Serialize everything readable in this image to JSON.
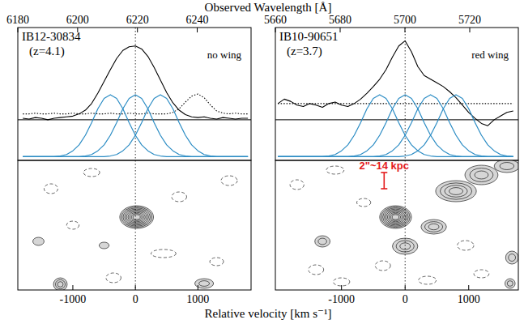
{
  "figure": {
    "xlabel_top": "Observed Wavelength [Å]",
    "xlabel_bottom": "Relative velocity [km s⁻¹]"
  },
  "chart_data": [
    {
      "type": "line",
      "title": "IB12-30834",
      "subtitle": "(z=4.1)",
      "annotation": "no wing",
      "x": [
        -1800,
        -1700,
        -1600,
        -1500,
        -1400,
        -1300,
        -1200,
        -1100,
        -1000,
        -900,
        -800,
        -700,
        -600,
        -500,
        -400,
        -300,
        -200,
        -100,
        0,
        100,
        200,
        300,
        400,
        500,
        600,
        700,
        800,
        900,
        1000,
        1100,
        1200,
        1300,
        1400,
        1500,
        1600,
        1700,
        1800
      ],
      "series": [
        {
          "color": "#000000",
          "line_style": "solid",
          "values": [
            0.02,
            0.01,
            0.03,
            0.02,
            0.0,
            0.02,
            0.03,
            0.04,
            0.05,
            0.08,
            0.13,
            0.22,
            0.36,
            0.52,
            0.68,
            0.83,
            0.94,
            0.99,
            1.0,
            0.96,
            0.86,
            0.71,
            0.54,
            0.37,
            0.23,
            0.13,
            0.07,
            0.04,
            0.03,
            0.04,
            0.02,
            0.01,
            0.03,
            0.02,
            0.01,
            0.02,
            0.02
          ]
        },
        {
          "color": "#000000",
          "line_style": "dotted",
          "values": [
            0.08,
            0.08,
            0.09,
            0.08,
            0.08,
            0.09,
            0.08,
            0.08,
            0.09,
            0.08,
            0.08,
            0.09,
            0.08,
            0.08,
            0.09,
            0.08,
            0.08,
            0.09,
            0.08,
            0.08,
            0.09,
            0.08,
            0.08,
            0.08,
            0.1,
            0.15,
            0.24,
            0.32,
            0.35,
            0.3,
            0.2,
            0.12,
            0.09,
            0.08,
            0.09,
            0.08,
            0.08
          ]
        },
        {
          "color": "#2b8cc4",
          "line_style": "solid",
          "values": [
            -0.5,
            -0.5,
            -0.5,
            -0.5,
            -0.5,
            -0.5,
            -0.49,
            -0.47,
            -0.42,
            -0.34,
            -0.21,
            -0.04,
            0.15,
            0.29,
            0.34,
            0.29,
            0.15,
            -0.04,
            -0.21,
            -0.34,
            -0.42,
            -0.47,
            -0.49,
            -0.5,
            -0.5,
            -0.5,
            -0.5,
            -0.5,
            -0.5,
            -0.5,
            -0.5,
            -0.5,
            -0.5,
            -0.5,
            -0.5,
            -0.5,
            -0.5
          ]
        },
        {
          "color": "#2b8cc4",
          "line_style": "solid",
          "values": [
            -0.5,
            -0.5,
            -0.5,
            -0.5,
            -0.5,
            -0.5,
            -0.5,
            -0.5,
            -0.5,
            -0.5,
            -0.49,
            -0.47,
            -0.42,
            -0.34,
            -0.21,
            -0.04,
            0.15,
            0.29,
            0.34,
            0.29,
            0.15,
            -0.04,
            -0.21,
            -0.34,
            -0.42,
            -0.47,
            -0.49,
            -0.5,
            -0.5,
            -0.5,
            -0.5,
            -0.5,
            -0.5,
            -0.5,
            -0.5,
            -0.5,
            -0.5
          ]
        },
        {
          "color": "#2b8cc4",
          "line_style": "solid",
          "values": [
            -0.5,
            -0.5,
            -0.5,
            -0.5,
            -0.5,
            -0.5,
            -0.5,
            -0.5,
            -0.5,
            -0.5,
            -0.5,
            -0.5,
            -0.5,
            -0.5,
            -0.49,
            -0.47,
            -0.42,
            -0.34,
            -0.21,
            -0.04,
            0.15,
            0.29,
            0.34,
            0.29,
            0.15,
            -0.04,
            -0.21,
            -0.34,
            -0.42,
            -0.47,
            -0.49,
            -0.5,
            -0.5,
            -0.5,
            -0.5,
            -0.5,
            -0.5
          ]
        }
      ],
      "xlim": [
        -1880,
        1850
      ],
      "x2lim": [
        6180,
        6258
      ],
      "x2ticks": [
        6180,
        6200,
        6220,
        6240
      ],
      "ylim": [
        -0.55,
        1.25
      ],
      "yticks": [
        0
      ],
      "vline": 0,
      "grid": false,
      "tick_labels": "x"
    },
    {
      "type": "contour",
      "xlim": [
        -1880,
        1850
      ],
      "xticks": [
        -1000,
        0,
        1000
      ],
      "ylim": [
        -9,
        7
      ],
      "vline": 0,
      "grid": false,
      "tick_labels": "x",
      "blobs": [
        {
          "x": 20,
          "y": 0,
          "rx": 270,
          "ry": 1.4,
          "levels": 9,
          "line_style": "solid"
        },
        {
          "x": -1200,
          "y": -8.3,
          "rx": 110,
          "ry": 0.8,
          "levels": 3,
          "line_style": "solid"
        },
        {
          "x": 1100,
          "y": -8.2,
          "rx": 150,
          "ry": 0.6,
          "levels": 2,
          "line_style": "solid"
        },
        {
          "x": -1550,
          "y": -3,
          "rx": 90,
          "ry": 0.5,
          "levels": 1,
          "line_style": "solid"
        },
        {
          "x": -500,
          "y": -3.5,
          "rx": 80,
          "ry": 0.4,
          "levels": 1,
          "line_style": "solid"
        },
        {
          "x": -1350,
          "y": 3.5,
          "rx": 110,
          "ry": 0.6,
          "levels": 1,
          "line_style": "dashed"
        },
        {
          "x": -700,
          "y": 5.5,
          "rx": 130,
          "ry": 0.5,
          "levels": 1,
          "line_style": "dashed"
        },
        {
          "x": -350,
          "y": -7.5,
          "rx": 120,
          "ry": 0.6,
          "levels": 1,
          "line_style": "dashed"
        },
        {
          "x": 450,
          "y": -4.5,
          "rx": 200,
          "ry": 0.5,
          "levels": 1,
          "line_style": "dashed"
        },
        {
          "x": 700,
          "y": 2.5,
          "rx": 120,
          "ry": 0.6,
          "levels": 1,
          "line_style": "dashed"
        },
        {
          "x": 1500,
          "y": 4.5,
          "rx": 130,
          "ry": 0.6,
          "levels": 1,
          "line_style": "dashed"
        },
        {
          "x": 1300,
          "y": -5.5,
          "rx": 110,
          "ry": 0.5,
          "levels": 1,
          "line_style": "dashed"
        },
        {
          "x": -1000,
          "y": -1,
          "rx": 100,
          "ry": 0.5,
          "levels": 1,
          "line_style": "dashed"
        }
      ]
    },
    {
      "type": "line",
      "title": "IB10-90651",
      "subtitle": "(z=3.7)",
      "annotation": "red wing",
      "x": [
        -2000,
        -1900,
        -1800,
        -1700,
        -1600,
        -1500,
        -1400,
        -1300,
        -1200,
        -1100,
        -1000,
        -900,
        -800,
        -700,
        -600,
        -500,
        -400,
        -300,
        -200,
        -100,
        0,
        100,
        200,
        300,
        400,
        500,
        600,
        700,
        800,
        900,
        1000,
        1100,
        1200,
        1300,
        1400,
        1500,
        1600,
        1700
      ],
      "series": [
        {
          "color": "#000000",
          "line_style": "solid",
          "values": [
            0.22,
            0.28,
            0.25,
            0.2,
            0.18,
            0.22,
            0.2,
            0.17,
            0.22,
            0.24,
            0.2,
            0.18,
            0.22,
            0.28,
            0.36,
            0.45,
            0.55,
            0.68,
            0.85,
            1.0,
            1.07,
            0.92,
            0.72,
            0.6,
            0.55,
            0.5,
            0.45,
            0.38,
            0.3,
            0.2,
            0.1,
            0.02,
            -0.05,
            -0.08,
            0.0,
            0.05,
            0.1,
            0.12
          ]
        },
        {
          "color": "#000000",
          "line_style": "dotted",
          "values": [
            0.22,
            0.22,
            0.22,
            0.22,
            0.22,
            0.22,
            0.22,
            0.22,
            0.22,
            0.22,
            0.22,
            0.22,
            0.22,
            0.22,
            0.22,
            0.22,
            0.22,
            0.22,
            0.22,
            0.22,
            0.22,
            0.22,
            0.22,
            0.22,
            0.22,
            0.22,
            0.22,
            0.22,
            0.22,
            0.22,
            0.22,
            0.22,
            0.22,
            0.22,
            0.22,
            0.22,
            0.22,
            0.22
          ]
        },
        {
          "color": "#2b8cc4",
          "line_style": "solid",
          "values": [
            -0.5,
            -0.5,
            -0.5,
            -0.5,
            -0.5,
            -0.5,
            -0.5,
            -0.5,
            -0.49,
            -0.47,
            -0.42,
            -0.34,
            -0.21,
            -0.04,
            0.15,
            0.29,
            0.34,
            0.29,
            0.15,
            -0.04,
            -0.21,
            -0.34,
            -0.42,
            -0.47,
            -0.49,
            -0.5,
            -0.5,
            -0.5,
            -0.5,
            -0.5,
            -0.5,
            -0.5,
            -0.5,
            -0.5,
            -0.5,
            -0.5,
            -0.5,
            -0.5
          ]
        },
        {
          "color": "#2b8cc4",
          "line_style": "solid",
          "values": [
            -0.5,
            -0.5,
            -0.5,
            -0.5,
            -0.5,
            -0.5,
            -0.5,
            -0.5,
            -0.5,
            -0.5,
            -0.5,
            -0.5,
            -0.49,
            -0.47,
            -0.42,
            -0.34,
            -0.21,
            -0.04,
            0.15,
            0.29,
            0.34,
            0.29,
            0.15,
            -0.04,
            -0.21,
            -0.34,
            -0.42,
            -0.47,
            -0.49,
            -0.5,
            -0.5,
            -0.5,
            -0.5,
            -0.5,
            -0.5,
            -0.5,
            -0.5,
            -0.5
          ]
        },
        {
          "color": "#2b8cc4",
          "line_style": "solid",
          "values": [
            -0.5,
            -0.5,
            -0.5,
            -0.5,
            -0.5,
            -0.5,
            -0.5,
            -0.5,
            -0.5,
            -0.5,
            -0.5,
            -0.5,
            -0.5,
            -0.5,
            -0.5,
            -0.5,
            -0.49,
            -0.47,
            -0.42,
            -0.34,
            -0.21,
            -0.04,
            0.15,
            0.29,
            0.34,
            0.29,
            0.15,
            -0.04,
            -0.21,
            -0.34,
            -0.42,
            -0.47,
            -0.49,
            -0.5,
            -0.5,
            -0.5,
            -0.5,
            -0.5
          ]
        },
        {
          "color": "#2b8cc4",
          "line_style": "solid",
          "values": [
            -0.5,
            -0.5,
            -0.5,
            -0.5,
            -0.5,
            -0.5,
            -0.5,
            -0.5,
            -0.5,
            -0.5,
            -0.5,
            -0.5,
            -0.5,
            -0.5,
            -0.5,
            -0.5,
            -0.5,
            -0.5,
            -0.5,
            -0.5,
            -0.49,
            -0.47,
            -0.42,
            -0.34,
            -0.21,
            -0.04,
            0.15,
            0.29,
            0.34,
            0.29,
            0.15,
            -0.04,
            -0.21,
            -0.34,
            -0.42,
            -0.47,
            -0.49,
            -0.5
          ]
        }
      ],
      "xlim": [
        -2040,
        1780
      ],
      "x2lim": [
        5660,
        5735
      ],
      "x2ticks": [
        5660,
        5680,
        5700,
        5720
      ],
      "ylim": [
        -0.55,
        1.25
      ],
      "yticks": [
        0
      ],
      "vline": 0,
      "grid": false,
      "tick_labels": "x"
    },
    {
      "type": "contour",
      "xlim": [
        -2040,
        1780
      ],
      "xticks": [
        -1000,
        0,
        1000
      ],
      "ylim": [
        -9,
        7
      ],
      "vline": 0,
      "grid": false,
      "tick_labels": "x",
      "scale_bar": {
        "label": "2\"~14 kpc",
        "x": -330,
        "y0": 3.5,
        "y1": 5.5,
        "color": "#e41a1c"
      },
      "blobs": [
        {
          "x": -150,
          "y": 0,
          "rx": 250,
          "ry": 1.4,
          "levels": 9,
          "line_style": "solid"
        },
        {
          "x": 450,
          "y": -1.2,
          "rx": 200,
          "ry": 0.9,
          "levels": 3,
          "line_style": "solid"
        },
        {
          "x": 0,
          "y": -3.6,
          "rx": 200,
          "ry": 1.0,
          "levels": 3,
          "line_style": "solid"
        },
        {
          "x": 800,
          "y": 3.2,
          "rx": 320,
          "ry": 1.3,
          "levels": 4,
          "line_style": "solid"
        },
        {
          "x": 1200,
          "y": 5.2,
          "rx": 260,
          "ry": 1.2,
          "levels": 3,
          "line_style": "solid"
        },
        {
          "x": 1600,
          "y": 6.3,
          "rx": 200,
          "ry": 0.8,
          "levels": 2,
          "line_style": "solid"
        },
        {
          "x": 1680,
          "y": -5,
          "rx": 100,
          "ry": 0.8,
          "levels": 2,
          "line_style": "solid"
        },
        {
          "x": 1650,
          "y": -8.2,
          "rx": 80,
          "ry": 0.6,
          "levels": 2,
          "line_style": "solid"
        },
        {
          "x": -1300,
          "y": -3,
          "rx": 120,
          "ry": 0.7,
          "levels": 2,
          "line_style": "solid"
        },
        {
          "x": -1700,
          "y": 4,
          "rx": 110,
          "ry": 0.6,
          "levels": 1,
          "line_style": "dashed"
        },
        {
          "x": -1400,
          "y": -6.5,
          "rx": 120,
          "ry": 0.6,
          "levels": 1,
          "line_style": "dashed"
        },
        {
          "x": -1100,
          "y": 5.8,
          "rx": 140,
          "ry": 0.5,
          "levels": 1,
          "line_style": "dashed"
        },
        {
          "x": -1000,
          "y": -8,
          "rx": 130,
          "ry": 0.5,
          "levels": 1,
          "line_style": "dashed"
        },
        {
          "x": -350,
          "y": -6,
          "rx": 120,
          "ry": 0.6,
          "levels": 1,
          "line_style": "dashed"
        },
        {
          "x": 350,
          "y": -7.8,
          "rx": 140,
          "ry": 0.5,
          "levels": 1,
          "line_style": "dashed"
        },
        {
          "x": 950,
          "y": -3.5,
          "rx": 130,
          "ry": 0.6,
          "levels": 1,
          "line_style": "dashed"
        },
        {
          "x": 1200,
          "y": -7,
          "rx": 120,
          "ry": 0.5,
          "levels": 1,
          "line_style": "dashed"
        },
        {
          "x": -650,
          "y": 1.8,
          "rx": 110,
          "ry": 0.5,
          "levels": 1,
          "line_style": "dashed"
        }
      ]
    }
  ]
}
